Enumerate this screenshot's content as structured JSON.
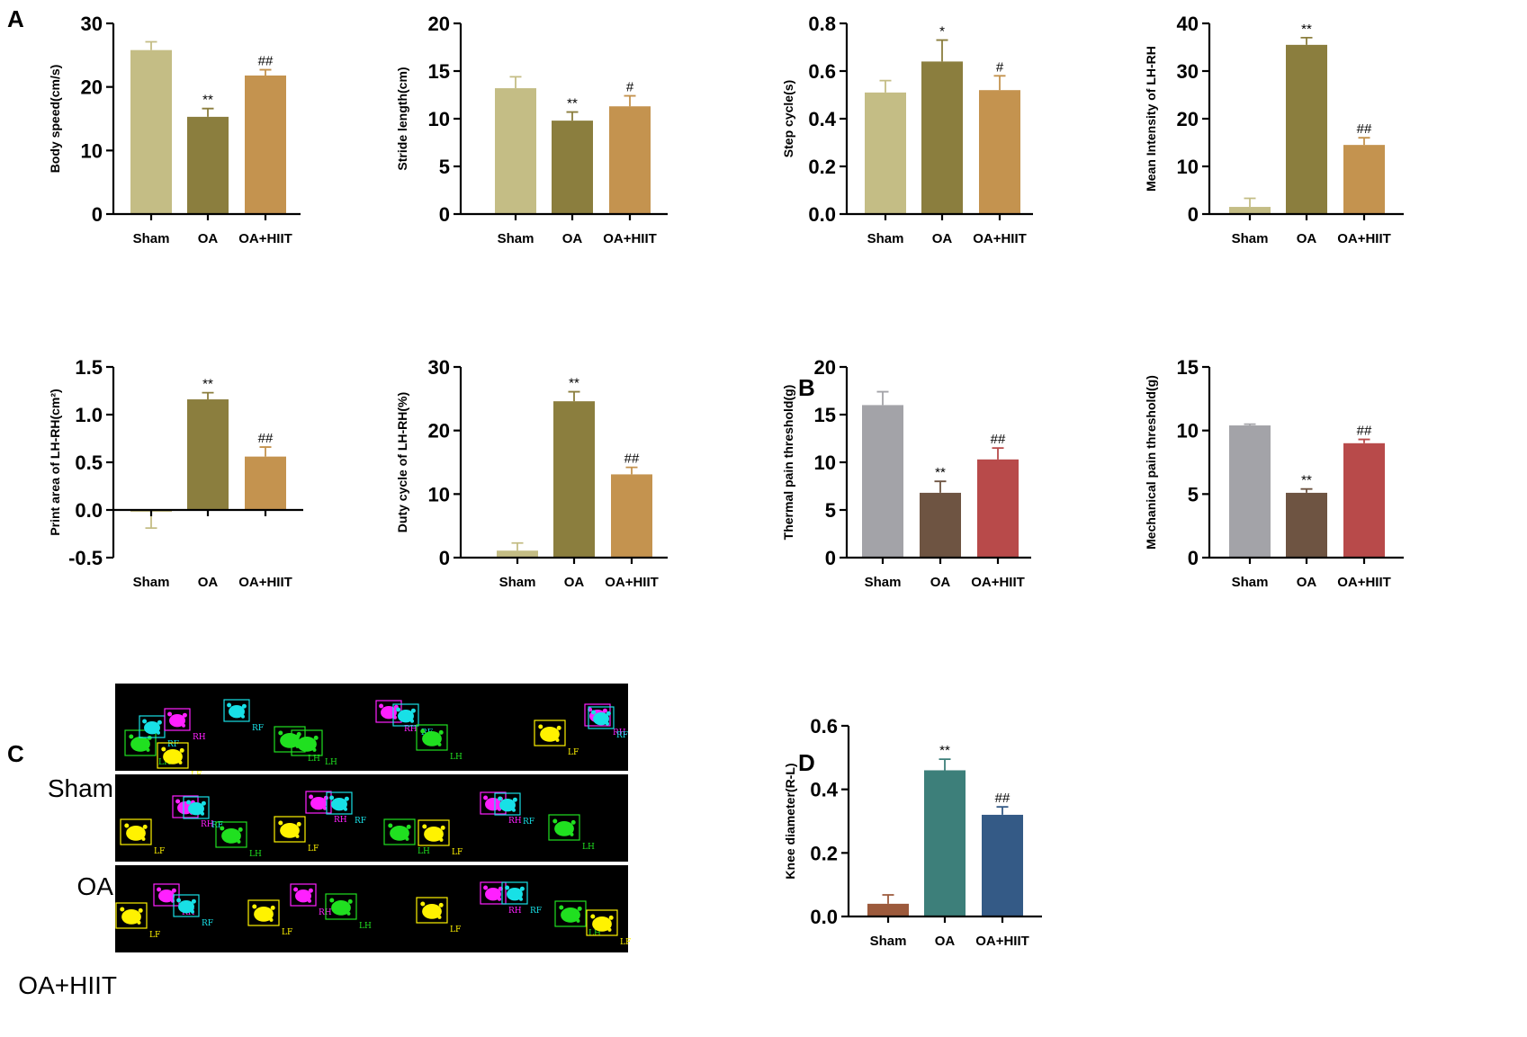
{
  "panel_labels": [
    "A",
    "B",
    "C",
    "D"
  ],
  "colors": {
    "sham_a": "#c4bd85",
    "oa_a": "#8b7e3e",
    "hiit_a": "#c4934f",
    "sham_b": "#a3a3a8",
    "oa_b": "#6e5442",
    "hiit_b": "#b84a4a",
    "sham_d": "#9c5a3c",
    "oa_d": "#3d7f7a",
    "hiit_d": "#345a86",
    "axis": "#000000",
    "footprint_bg": "#000000",
    "paw_rf": "#18e0e6",
    "paw_rh": "#ff20ff",
    "paw_lf": "#fff200",
    "paw_lh": "#20e020"
  },
  "chart_data": [
    {
      "id": "body-speed",
      "type": "bar",
      "panel": "A",
      "categories": [
        "Sham",
        "OA",
        "OA+HIIT"
      ],
      "values": [
        25.8,
        15.3,
        21.8
      ],
      "errors": [
        1.3,
        1.3,
        0.9
      ],
      "ylabel": "Body speed(cm/s)",
      "ylim": [
        0,
        30
      ],
      "yticks": [
        "0",
        "10",
        "20",
        "30"
      ],
      "significance": [
        "",
        "**",
        "##"
      ],
      "palette": "a"
    },
    {
      "id": "stride-length",
      "type": "bar",
      "panel": "A",
      "categories": [
        "Sham",
        "OA",
        "OA+HIIT"
      ],
      "values": [
        13.2,
        9.8,
        11.3
      ],
      "errors": [
        1.2,
        0.9,
        1.1
      ],
      "ylabel": "Stride length(cm)",
      "ylim": [
        0,
        20
      ],
      "yticks": [
        "0",
        "5",
        "10",
        "15",
        "20"
      ],
      "significance": [
        "",
        "**",
        "#"
      ],
      "palette": "a"
    },
    {
      "id": "step-cycle",
      "type": "bar",
      "panel": "A",
      "categories": [
        "Sham",
        "OA",
        "OA+HIIT"
      ],
      "values": [
        0.51,
        0.64,
        0.52
      ],
      "errors": [
        0.05,
        0.09,
        0.06
      ],
      "ylabel": "Step cycle(s)",
      "ylim": [
        0,
        0.8
      ],
      "yticks": [
        "0.0",
        "0.2",
        "0.4",
        "0.6",
        "0.8"
      ],
      "significance": [
        "",
        "*",
        "#"
      ],
      "palette": "a"
    },
    {
      "id": "mean-intensity",
      "type": "bar",
      "panel": "A",
      "categories": [
        "Sham",
        "OA",
        "OA+HIIT"
      ],
      "values": [
        1.5,
        35.5,
        14.5
      ],
      "errors": [
        1.8,
        1.5,
        1.5
      ],
      "ylabel": "Mean Intensity of LH-RH",
      "ylim": [
        0,
        40
      ],
      "yticks": [
        "0",
        "10",
        "20",
        "30",
        "40"
      ],
      "significance": [
        "",
        "**",
        "##"
      ],
      "palette": "a"
    },
    {
      "id": "print-area",
      "type": "bar",
      "panel": "A",
      "categories": [
        "Sham",
        "OA",
        "OA+HIIT"
      ],
      "values": [
        -0.02,
        1.16,
        0.56
      ],
      "errors": [
        0.17,
        0.07,
        0.1
      ],
      "ylabel": "Print area of LH-RH(cm²)",
      "ylim": [
        -0.5,
        1.5
      ],
      "yticks": [
        "-0.5",
        "0.0",
        "0.5",
        "1.0",
        "1.5"
      ],
      "significance": [
        "",
        "**",
        "##"
      ],
      "palette": "a"
    },
    {
      "id": "duty-cycle",
      "type": "bar",
      "panel": "A",
      "categories": [
        "Sham",
        "OA",
        "OA+HIIT"
      ],
      "values": [
        1.1,
        24.6,
        13.1
      ],
      "errors": [
        1.2,
        1.5,
        1.1
      ],
      "ylabel": "Duty cycle of LH-RH(%)",
      "ylim": [
        0,
        30
      ],
      "yticks": [
        "0",
        "10",
        "20",
        "30"
      ],
      "significance": [
        "",
        "**",
        "##"
      ],
      "palette": "a"
    },
    {
      "id": "thermal-pain",
      "type": "bar",
      "panel": "B",
      "categories": [
        "Sham",
        "OA",
        "OA+HIIT"
      ],
      "values": [
        16.0,
        6.8,
        10.3
      ],
      "errors": [
        1.4,
        1.2,
        1.2
      ],
      "ylabel": "Thermal pain threshold(g)",
      "ylim": [
        0,
        20
      ],
      "yticks": [
        "0",
        "5",
        "10",
        "15",
        "20"
      ],
      "significance": [
        "",
        "**",
        "##"
      ],
      "palette": "b"
    },
    {
      "id": "mechanical-pain",
      "type": "bar",
      "panel": "B",
      "categories": [
        "Sham",
        "OA",
        "OA+HIIT"
      ],
      "values": [
        10.4,
        5.1,
        9.0
      ],
      "errors": [
        0.1,
        0.3,
        0.3
      ],
      "ylabel": "Mechanical pain threshold(g)",
      "ylim": [
        0,
        15
      ],
      "yticks": [
        "0",
        "5",
        "10",
        "15"
      ],
      "significance": [
        "",
        "**",
        "##"
      ],
      "palette": "b"
    },
    {
      "id": "knee-diameter",
      "type": "bar",
      "panel": "D",
      "categories": [
        "Sham",
        "OA",
        "OA+HIIT"
      ],
      "values": [
        0.04,
        0.46,
        0.32
      ],
      "errors": [
        0.028,
        0.035,
        0.025
      ],
      "ylabel": "Knee diameter(R-L)",
      "ylim": [
        0,
        0.6
      ],
      "yticks": [
        "0.0",
        "0.2",
        "0.4",
        "0.6"
      ],
      "significance": [
        "",
        "**",
        "##"
      ],
      "palette": "d"
    }
  ],
  "footprints": {
    "rows": [
      "Sham",
      "OA",
      "OA+HIIT"
    ],
    "paw_labels": {
      "rf": "RF",
      "rh": "RH",
      "lf": "LF",
      "lh": "LH"
    }
  }
}
